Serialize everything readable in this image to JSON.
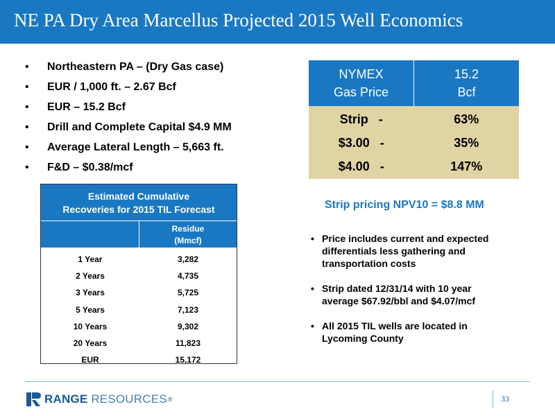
{
  "title": "NE PA Dry Area Marcellus Projected 2015 Well Economics",
  "bullets": [
    "Northeastern PA – (Dry Gas case)",
    "EUR / 1,000 ft. – 2.67 Bcf",
    "EUR – 15.2 Bcf",
    "Drill and Complete Capital $4.9 MM",
    "Average Lateral Length – 5,663 ft.",
    "F&D – $0.38/mcf"
  ],
  "bullet_glyph": "•",
  "price_table": {
    "head_left_1": "NYMEX",
    "head_left_2": "Gas Price",
    "head_right_1": "15.2",
    "head_right_2": "Bcf",
    "rows": [
      {
        "price": "Strip   -",
        "value": "63%"
      },
      {
        "price": "$3.00   -",
        "value": "35%"
      },
      {
        "price": "$4.00   -",
        "value": "147%"
      }
    ]
  },
  "cum_table": {
    "title_1": "Estimated Cumulative",
    "title_2": "Recoveries for 2015 TIL Forecast",
    "col_head_1": "Residue",
    "col_head_2": "(Mmcf)",
    "rows": [
      {
        "label": "1 Year",
        "value": "3,282"
      },
      {
        "label": "2 Years",
        "value": "4,735"
      },
      {
        "label": "3 Years",
        "value": "5,725"
      },
      {
        "label": "5 Years",
        "value": "7,123"
      },
      {
        "label": "10 Years",
        "value": "9,302"
      },
      {
        "label": "20 Years",
        "value": "11,823"
      },
      {
        "label": "EUR",
        "value": "15,172"
      }
    ]
  },
  "npv": "Strip pricing NPV10 = $8.8 MM",
  "notes": [
    "Price includes current and expected\ndifferentials less gathering and\ntransportation costs",
    "Strip dated 12/31/14 with 10 year\naverage $67.92/bbl and $4.07/mcf",
    "All 2015 TIL wells are located in\nLycoming County"
  ],
  "logo": {
    "bold": "RANGE",
    "light": " RESOURCES",
    "reg": "®"
  },
  "page_number": "33",
  "colors": {
    "accent": "#1a78c2",
    "table_fill": "#e0d3a4",
    "logo": "#1a5a96"
  }
}
